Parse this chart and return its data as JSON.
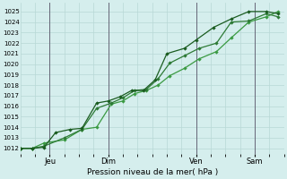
{
  "xlabel": "Pression niveau de la mer( hPa )",
  "bg_color": "#d5eeed",
  "grid_color": "#b8d8d5",
  "vline_color": "#666677",
  "line_color1": "#1a5c20",
  "line_color2": "#2d7a35",
  "line_color3": "#3a9a42",
  "ylim": [
    1011.5,
    1025.8
  ],
  "yticks": [
    1012,
    1013,
    1014,
    1015,
    1016,
    1017,
    1018,
    1019,
    1020,
    1021,
    1022,
    1023,
    1024,
    1025
  ],
  "xlim": [
    0,
    4.5
  ],
  "day_positions": [
    0.5,
    1.5,
    3.0,
    4.0
  ],
  "day_labels": [
    "Jeu",
    "Dim",
    "Ven",
    "Sam"
  ],
  "s1x": [
    0.0,
    0.2,
    0.4,
    0.6,
    0.85,
    1.05,
    1.3,
    1.5,
    1.7,
    1.9,
    2.1,
    2.3,
    2.5,
    2.8,
    3.0,
    3.3,
    3.6,
    3.9,
    4.2,
    4.4
  ],
  "s1y": [
    1012.0,
    1012.0,
    1012.1,
    1013.5,
    1013.8,
    1013.9,
    1016.3,
    1016.5,
    1016.9,
    1017.5,
    1017.5,
    1018.5,
    1021.0,
    1021.5,
    1022.3,
    1023.5,
    1024.3,
    1025.0,
    1025.0,
    1024.8
  ],
  "s2x": [
    0.0,
    0.2,
    0.4,
    0.75,
    1.05,
    1.3,
    1.55,
    1.75,
    1.95,
    2.15,
    2.35,
    2.55,
    2.8,
    3.05,
    3.35,
    3.6,
    3.9,
    4.2,
    4.4
  ],
  "s2y": [
    1012.0,
    1012.0,
    1012.2,
    1013.0,
    1013.8,
    1015.8,
    1016.3,
    1016.8,
    1017.5,
    1017.6,
    1018.6,
    1020.1,
    1020.8,
    1021.5,
    1022.0,
    1024.0,
    1024.1,
    1024.8,
    1024.5
  ],
  "s3x": [
    0.0,
    0.2,
    0.4,
    0.75,
    1.05,
    1.3,
    1.55,
    1.75,
    1.95,
    2.15,
    2.35,
    2.55,
    2.8,
    3.05,
    3.35,
    3.6,
    3.9,
    4.2,
    4.4
  ],
  "s3y": [
    1012.0,
    1012.0,
    1012.5,
    1012.8,
    1013.8,
    1014.0,
    1016.2,
    1016.5,
    1017.2,
    1017.5,
    1018.0,
    1018.9,
    1019.6,
    1020.5,
    1021.2,
    1022.5,
    1024.0,
    1024.5,
    1025.0
  ]
}
